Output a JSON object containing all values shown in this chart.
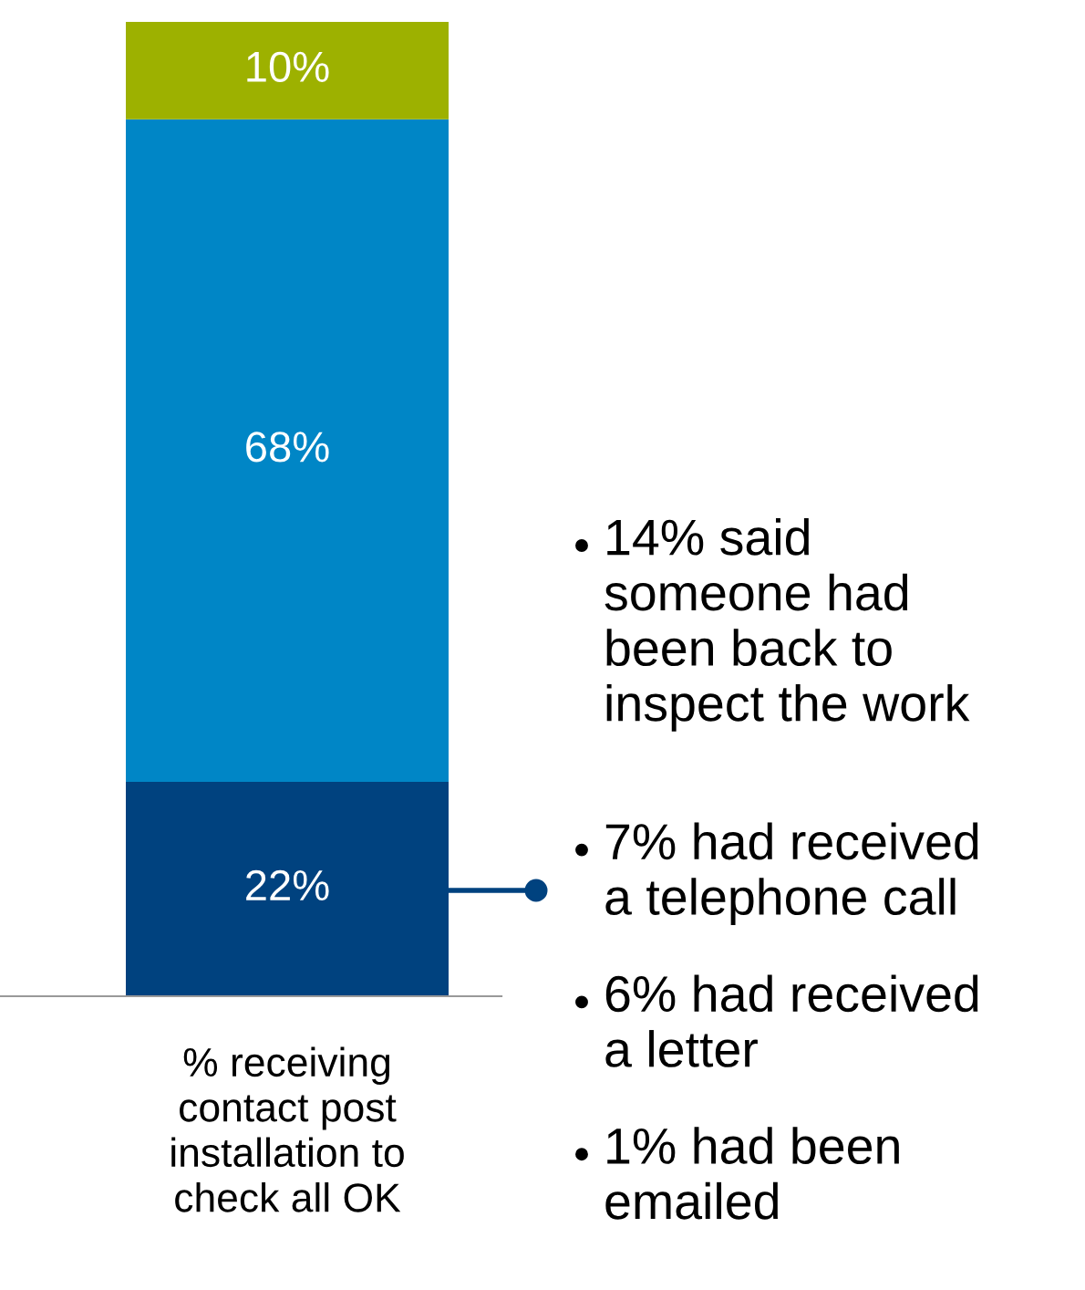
{
  "chart_data": {
    "type": "bar",
    "stacked": true,
    "categories": [
      "% receiving\ncontact post\ninstallation to\ncheck all OK"
    ],
    "series": [
      {
        "color": "#00427f",
        "values": [
          22
        ],
        "value_labels": [
          "22%"
        ]
      },
      {
        "color": "#0086c6",
        "values": [
          68
        ],
        "value_labels": [
          "68%"
        ]
      },
      {
        "color": "#9db100",
        "values": [
          10
        ],
        "value_labels": [
          "10%"
        ]
      }
    ],
    "annotations": [
      "14% said\nsomeone had\nbeen back to\ninspect the work",
      "7% had received\na telephone call",
      "6% had received\na letter",
      "1% had been\nemailed"
    ],
    "grid": false,
    "legend": false
  }
}
